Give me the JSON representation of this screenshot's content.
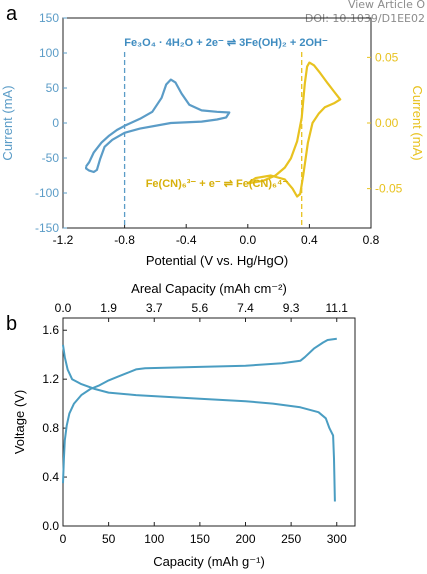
{
  "watermark": {
    "line1": "View Article O",
    "line2": "DOI: 10.1039/D1EE02"
  },
  "colors": {
    "fe_series": "#5b9cc7",
    "fecn_series": "#e8c21f",
    "axis": "#222222",
    "panel_b_series": "#4a9dc2"
  },
  "chart_data": [
    {
      "type": "line",
      "panel_label": "a",
      "xlabel": "Potential (V vs. Hg/HgO)",
      "ylabel_left": "Current (mA)",
      "ylabel_right": "Current (mA)",
      "xlim": [
        -1.2,
        0.8
      ],
      "ylim_left": [
        -150,
        150
      ],
      "ylim_right": [
        -0.08,
        0.08
      ],
      "xticks": [
        "-1.2",
        "-0.8",
        "-0.4",
        "0.0",
        "0.4",
        "0.8"
      ],
      "yticks_left": [
        "-150",
        "-100",
        "-50",
        "0",
        "50",
        "100",
        "150"
      ],
      "yticks_right": [
        "-0.05",
        "0.00",
        "0.05"
      ],
      "annotations": {
        "eq_fe": "Fe₃O₄ · 4H₂O + 2e⁻ ⇌ 3Fe(OH)₂ + 2OH⁻",
        "eq_fecn": "Fe(CN)₆³⁻ + e⁻ ⇌ Fe(CN)₆⁴⁻",
        "vline_fe": -0.8,
        "vline_fecn": 0.35
      },
      "series": [
        {
          "axis": "left",
          "color": "#5b9cc7",
          "points": [
            [
              -1.05,
              -62
            ],
            [
              -1.03,
              -56
            ],
            [
              -1.0,
              -42
            ],
            [
              -0.95,
              -28
            ],
            [
              -0.9,
              -18
            ],
            [
              -0.85,
              -10
            ],
            [
              -0.8,
              -4
            ],
            [
              -0.7,
              6
            ],
            [
              -0.62,
              16
            ],
            [
              -0.56,
              36
            ],
            [
              -0.53,
              55
            ],
            [
              -0.5,
              62
            ],
            [
              -0.47,
              58
            ],
            [
              -0.43,
              42
            ],
            [
              -0.38,
              26
            ],
            [
              -0.3,
              18
            ],
            [
              -0.2,
              16
            ],
            [
              -0.12,
              15
            ],
            [
              -0.14,
              8
            ],
            [
              -0.2,
              5
            ],
            [
              -0.3,
              2
            ],
            [
              -0.5,
              0
            ],
            [
              -0.7,
              -8
            ],
            [
              -0.8,
              -14
            ],
            [
              -0.88,
              -24
            ],
            [
              -0.93,
              -34
            ],
            [
              -0.96,
              -52
            ],
            [
              -0.98,
              -67
            ],
            [
              -1.0,
              -70
            ],
            [
              -1.03,
              -68
            ],
            [
              -1.05,
              -65
            ],
            [
              -1.05,
              -62
            ]
          ]
        },
        {
          "axis": "right",
          "color": "#e8c21f",
          "points": [
            [
              0.0,
              -0.046
            ],
            [
              0.1,
              -0.044
            ],
            [
              0.18,
              -0.04
            ],
            [
              0.24,
              -0.034
            ],
            [
              0.28,
              -0.027
            ],
            [
              0.32,
              -0.014
            ],
            [
              0.35,
              0.004
            ],
            [
              0.37,
              0.03
            ],
            [
              0.385,
              0.043
            ],
            [
              0.4,
              0.046
            ],
            [
              0.43,
              0.044
            ],
            [
              0.47,
              0.038
            ],
            [
              0.52,
              0.03
            ],
            [
              0.56,
              0.024
            ],
            [
              0.6,
              0.018
            ],
            [
              0.56,
              0.015
            ],
            [
              0.5,
              0.012
            ],
            [
              0.46,
              0.007
            ],
            [
              0.42,
              0.0
            ],
            [
              0.39,
              -0.015
            ],
            [
              0.36,
              -0.04
            ],
            [
              0.34,
              -0.054
            ],
            [
              0.32,
              -0.056
            ],
            [
              0.29,
              -0.05
            ],
            [
              0.24,
              -0.043
            ],
            [
              0.15,
              -0.04
            ],
            [
              0.05,
              -0.042
            ],
            [
              0.0,
              -0.046
            ]
          ]
        }
      ]
    },
    {
      "type": "line",
      "panel_label": "b",
      "xlabel": "Capacity (mAh g⁻¹)",
      "xlabel_top": "Areal Capacity (mAh cm⁻²)",
      "ylabel": "Voltage (V)",
      "xlim": [
        0,
        320
      ],
      "ylim": [
        0.0,
        1.7
      ],
      "xticks": [
        "0",
        "50",
        "100",
        "150",
        "200",
        "250",
        "300"
      ],
      "xticks_top": [
        "0.0",
        "1.9",
        "3.7",
        "5.6",
        "7.4",
        "9.3",
        "11.1"
      ],
      "yticks": [
        "0.0",
        "0.4",
        "0.8",
        "1.2",
        "1.6"
      ],
      "series": [
        {
          "color": "#4a9dc2",
          "points": [
            [
              0,
              0.35
            ],
            [
              1,
              0.55
            ],
            [
              2,
              0.7
            ],
            [
              4,
              0.82
            ],
            [
              7,
              0.92
            ],
            [
              12,
              1.0
            ],
            [
              20,
              1.07
            ],
            [
              30,
              1.12
            ],
            [
              40,
              1.15
            ],
            [
              50,
              1.19
            ],
            [
              60,
              1.22
            ],
            [
              70,
              1.25
            ],
            [
              80,
              1.28
            ],
            [
              90,
              1.29
            ],
            [
              150,
              1.3
            ],
            [
              200,
              1.31
            ],
            [
              240,
              1.33
            ],
            [
              260,
              1.35
            ],
            [
              265,
              1.38
            ],
            [
              275,
              1.45
            ],
            [
              285,
              1.5
            ],
            [
              290,
              1.52
            ],
            [
              300,
              1.53
            ]
          ]
        },
        {
          "color": "#4a9dc2",
          "points": [
            [
              0,
              1.48
            ],
            [
              2,
              1.38
            ],
            [
              5,
              1.28
            ],
            [
              10,
              1.2
            ],
            [
              20,
              1.16
            ],
            [
              35,
              1.12
            ],
            [
              50,
              1.09
            ],
            [
              80,
              1.07
            ],
            [
              150,
              1.04
            ],
            [
              200,
              1.02
            ],
            [
              230,
              1.0
            ],
            [
              260,
              0.97
            ],
            [
              280,
              0.93
            ],
            [
              288,
              0.88
            ],
            [
              292,
              0.8
            ],
            [
              296,
              0.74
            ],
            [
              297,
              0.55
            ],
            [
              298,
              0.2
            ]
          ]
        }
      ]
    }
  ]
}
